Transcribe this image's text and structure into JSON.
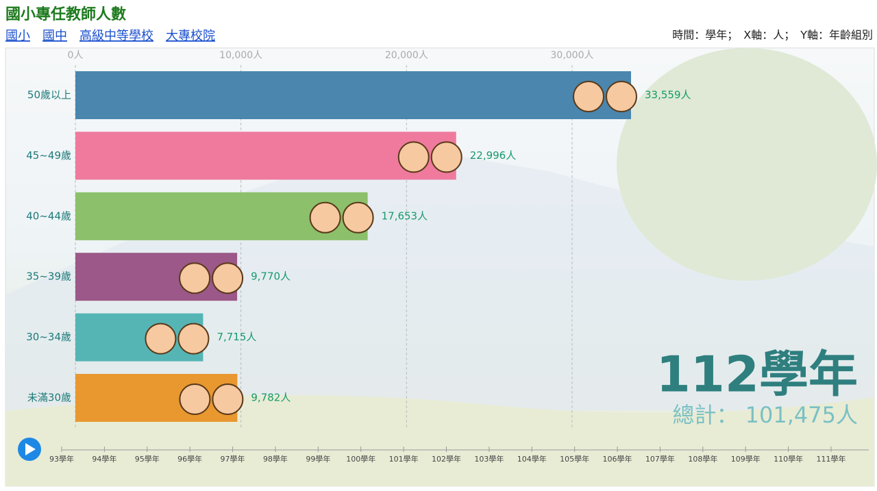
{
  "header": {
    "title": "國小專任教師人數",
    "links": [
      "國小",
      "國中",
      "高級中等學校",
      "大專校院"
    ],
    "info": "時間：學年；　X軸：人；　Y軸：年齡組別"
  },
  "chart_data": {
    "type": "bar",
    "orientation": "horizontal",
    "categories": [
      "50歲以上",
      "45~49歲",
      "40~44歲",
      "35~39歲",
      "30~34歲",
      "未滿30歲"
    ],
    "values": [
      33559,
      22996,
      17653,
      9770,
      7715,
      9782
    ],
    "value_labels": [
      "33,559人",
      "22,996人",
      "17,653人",
      "9,770人",
      "7,715人",
      "9,782人"
    ],
    "colors": [
      "#4a86ae",
      "#ef7a9e",
      "#8cc06b",
      "#9b5888",
      "#55b5b5",
      "#e8982f"
    ],
    "xlim": [
      0,
      48000
    ],
    "xticks": [
      {
        "value": 0,
        "label": "0人"
      },
      {
        "value": 10000,
        "label": "10,000人"
      },
      {
        "value": 20000,
        "label": "20,000人"
      },
      {
        "value": 30000,
        "label": "30,000人"
      }
    ],
    "grid": true
  },
  "overlay": {
    "period": "112學年",
    "total": "總計： 101,475人"
  },
  "timeline": {
    "labels": [
      "93學年",
      "94學年",
      "95學年",
      "96學年",
      "97學年",
      "98學年",
      "99學年",
      "100學年",
      "101學年",
      "102學年",
      "103學年",
      "104學年",
      "105學年",
      "106學年",
      "107學年",
      "108學年",
      "109學年",
      "110學年",
      "111學年"
    ]
  }
}
